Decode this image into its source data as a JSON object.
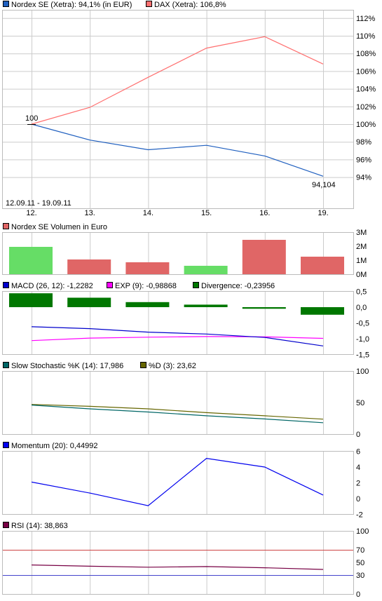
{
  "chart_data": [
    {
      "type": "line",
      "id": "price",
      "x": [
        "12.",
        "13.",
        "14.",
        "15.",
        "16.",
        "19."
      ],
      "series": [
        {
          "name": "Nordex SE (Xetra): 94,1% (in EUR)",
          "color": "#1f5fbf",
          "values": [
            100,
            98.2,
            97.1,
            97.6,
            96.4,
            94.1
          ]
        },
        {
          "name": "DAX (Xetra): 106,8%",
          "color": "#ff7070",
          "values": [
            100,
            101.9,
            105.3,
            108.6,
            109.9,
            106.8
          ]
        }
      ],
      "ylim": [
        93,
        113
      ],
      "yticks": [
        94,
        96,
        98,
        100,
        102,
        104,
        106,
        108,
        110,
        112
      ],
      "ytick_labels": [
        "94%",
        "96%",
        "98%",
        "100%",
        "102%",
        "104%",
        "106%",
        "108%",
        "110%",
        "112%"
      ],
      "annotations": {
        "start": "100",
        "end": "94,104",
        "range": "12.09.11 - 19.09.11"
      }
    },
    {
      "type": "bar",
      "id": "volume",
      "x": [
        "12.",
        "13.",
        "14.",
        "15.",
        "16.",
        "19."
      ],
      "series": [
        {
          "name": "Nordex SE Volumen in Euro",
          "color": "#e06666",
          "values": [
            1.95,
            1.05,
            0.85,
            0.6,
            2.45,
            1.25
          ]
        }
      ],
      "bar_colors": [
        "#66dd66",
        "#e06666",
        "#e06666",
        "#66dd66",
        "#e06666",
        "#e06666"
      ],
      "ylim": [
        0,
        3
      ],
      "yticks": [
        0,
        1,
        2,
        3
      ],
      "ytick_labels": [
        "0M",
        "1M",
        "2M",
        "3M"
      ]
    },
    {
      "type": "bar",
      "id": "macd",
      "x": [
        "12.",
        "13.",
        "14.",
        "15.",
        "16.",
        "19."
      ],
      "series": [
        {
          "name": "MACD (26, 12): -1,2282",
          "color": "#0000cc",
          "values": [
            -0.62,
            -0.68,
            -0.79,
            -0.85,
            -0.96,
            -1.2282
          ]
        },
        {
          "name": "EXP (9): -0,98868",
          "color": "#ff00ff",
          "values": [
            -1.06,
            -0.98,
            -0.95,
            -0.93,
            -0.94,
            -0.98868
          ]
        },
        {
          "name": "Divergence: -0,23956",
          "color": "#007700",
          "values": [
            0.44,
            0.3,
            0.16,
            0.08,
            -0.05,
            -0.23956
          ]
        }
      ],
      "ylim": [
        -1.5,
        0.5
      ],
      "yticks": [
        -1.5,
        -1.0,
        -0.5,
        0.0,
        0.5
      ],
      "ytick_labels": [
        "-1,5",
        "-1,0",
        "-0,5",
        "0,0",
        "0,5"
      ]
    },
    {
      "type": "line",
      "id": "stoch",
      "x": [
        "12.",
        "13.",
        "14.",
        "15.",
        "16.",
        "19."
      ],
      "series": [
        {
          "name": "Slow Stochastic %K (14): 17,986",
          "color": "#006666",
          "values": [
            46,
            40,
            35,
            29,
            24,
            17.986
          ]
        },
        {
          "name": "%D (3): 23,62",
          "color": "#666600",
          "values": [
            47,
            44,
            40,
            34,
            29,
            23.62
          ]
        }
      ],
      "ylim": [
        0,
        100
      ],
      "yticks": [
        0,
        50,
        100
      ],
      "ytick_labels": [
        "0",
        "50",
        "100"
      ]
    },
    {
      "type": "line",
      "id": "momentum",
      "x": [
        "12.",
        "13.",
        "14.",
        "15.",
        "16.",
        "19."
      ],
      "series": [
        {
          "name": "Momentum (20): 0,44992",
          "color": "#0000ee",
          "values": [
            2.1,
            0.7,
            -0.9,
            5.1,
            4.0,
            0.44992
          ]
        }
      ],
      "ylim": [
        -2,
        6
      ],
      "yticks": [
        -2,
        0,
        2,
        4,
        6
      ],
      "ytick_labels": [
        "-2",
        "0",
        "2",
        "4",
        "6"
      ]
    },
    {
      "type": "line",
      "id": "rsi",
      "x": [
        "12.",
        "13.",
        "14.",
        "15.",
        "16.",
        "19."
      ],
      "series": [
        {
          "name": "RSI (14): 38,863",
          "color": "#770044",
          "values": [
            46,
            44,
            42.5,
            43.5,
            41.5,
            38.863
          ]
        }
      ],
      "ylim": [
        0,
        100
      ],
      "yticks": [
        0,
        50,
        100
      ],
      "ytick_labels": [
        "0",
        "50",
        "100"
      ],
      "reference_lines": [
        {
          "value": 70,
          "label": "70",
          "color": "#cc4444"
        },
        {
          "value": 30,
          "label": "30",
          "color": "#4444cc"
        }
      ]
    }
  ]
}
